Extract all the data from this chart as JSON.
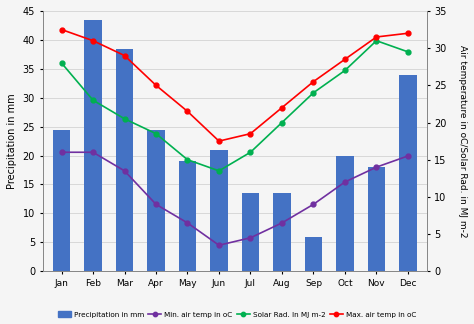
{
  "months": [
    "Jan",
    "Feb",
    "Mar",
    "Apr",
    "May",
    "Jun",
    "Jul",
    "Aug",
    "Sep",
    "Oct",
    "Nov",
    "Dec"
  ],
  "precipitation": [
    24.5,
    43.5,
    38.5,
    24.5,
    19.0,
    21.0,
    13.5,
    13.5,
    6.0,
    20.0,
    18.0,
    34.0
  ],
  "min_temp": [
    16.0,
    16.0,
    13.5,
    9.0,
    6.5,
    3.5,
    4.5,
    6.5,
    9.0,
    12.0,
    14.0,
    15.5
  ],
  "solar_rad": [
    28.0,
    23.0,
    20.5,
    18.5,
    15.0,
    13.5,
    16.0,
    20.0,
    24.0,
    27.0,
    31.0,
    29.5
  ],
  "max_temp": [
    32.5,
    31.0,
    29.0,
    25.0,
    21.5,
    17.5,
    18.5,
    22.0,
    25.5,
    28.5,
    31.5,
    32.0
  ],
  "bar_color": "#4472C4",
  "min_temp_color": "#7030A0",
  "solar_rad_color": "#00B050",
  "max_temp_color": "#FF0000",
  "ylabel_left": "Precipitation in mm",
  "ylabel_right": "Air temperature in °C/Solar Rad. in MJ m⁻²",
  "ylabel_right_plain": "Air temperature in oC/Solar Rad. in MJ m-2",
  "ylim_left": [
    0,
    45
  ],
  "ylim_right": [
    0,
    35
  ],
  "yticks_left": [
    0,
    5,
    10,
    15,
    20,
    25,
    30,
    35,
    40,
    45
  ],
  "yticks_right": [
    0,
    5,
    10,
    15,
    20,
    25,
    30,
    35
  ],
  "legend_labels": [
    "Precipitation in mm",
    "Min. air temp in oC",
    "Solar Rad. In MJ m-2",
    "Max. air temp in oC"
  ],
  "background_color": "#f5f5f5",
  "grid_color": "#cccccc",
  "figwidth": 4.74,
  "figheight": 3.24,
  "dpi": 100
}
